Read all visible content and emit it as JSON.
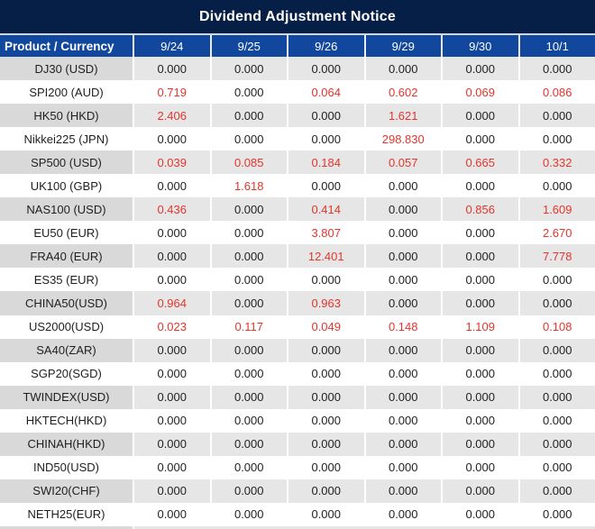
{
  "title": "Dividend Adjustment Notice",
  "colors": {
    "title_bar_navy": "#061f47",
    "header_blue": "#11489d",
    "separator_light_blue": "#cdd9ea",
    "row_label_gray": "#d9d9d9",
    "row_value_gray": "#e7e6e6",
    "value_black": "#1f1f1f",
    "value_red": "#e5342b"
  },
  "table": {
    "product_header": "Product / Currency",
    "dates": [
      "9/24",
      "9/25",
      "9/26",
      "9/29",
      "9/30",
      "10/1"
    ],
    "rows": [
      {
        "product": "DJ30 (USD)",
        "values": [
          "0.000",
          "0.000",
          "0.000",
          "0.000",
          "0.000",
          "0.000"
        ],
        "red": [
          0,
          0,
          0,
          0,
          0,
          0
        ]
      },
      {
        "product": "SPI200 (AUD)",
        "values": [
          "0.719",
          "0.000",
          "0.064",
          "0.602",
          "0.069",
          "0.086"
        ],
        "red": [
          1,
          0,
          1,
          1,
          1,
          1
        ]
      },
      {
        "product": "HK50 (HKD)",
        "values": [
          "2.406",
          "0.000",
          "0.000",
          "1.621",
          "0.000",
          "0.000"
        ],
        "red": [
          1,
          0,
          0,
          1,
          0,
          0
        ]
      },
      {
        "product": "Nikkei225 (JPN)",
        "values": [
          "0.000",
          "0.000",
          "0.000",
          "298.830",
          "0.000",
          "0.000"
        ],
        "red": [
          0,
          0,
          0,
          1,
          0,
          0
        ]
      },
      {
        "product": "SP500 (USD)",
        "values": [
          "0.039",
          "0.085",
          "0.184",
          "0.057",
          "0.665",
          "0.332"
        ],
        "red": [
          1,
          1,
          1,
          1,
          1,
          1
        ]
      },
      {
        "product": "UK100 (GBP)",
        "values": [
          "0.000",
          "1.618",
          "0.000",
          "0.000",
          "0.000",
          "0.000"
        ],
        "red": [
          0,
          1,
          0,
          0,
          0,
          0
        ]
      },
      {
        "product": "NAS100 (USD)",
        "values": [
          "0.436",
          "0.000",
          "0.414",
          "0.000",
          "0.856",
          "1.609"
        ],
        "red": [
          1,
          0,
          1,
          0,
          1,
          1
        ]
      },
      {
        "product": "EU50 (EUR)",
        "values": [
          "0.000",
          "0.000",
          "3.807",
          "0.000",
          "0.000",
          "2.670"
        ],
        "red": [
          0,
          0,
          1,
          0,
          0,
          1
        ]
      },
      {
        "product": "FRA40 (EUR)",
        "values": [
          "0.000",
          "0.000",
          "12.401",
          "0.000",
          "0.000",
          "7.778"
        ],
        "red": [
          0,
          0,
          1,
          0,
          0,
          1
        ]
      },
      {
        "product": "ES35 (EUR)",
        "values": [
          "0.000",
          "0.000",
          "0.000",
          "0.000",
          "0.000",
          "0.000"
        ],
        "red": [
          0,
          0,
          0,
          0,
          0,
          0
        ]
      },
      {
        "product": "CHINA50(USD)",
        "values": [
          "0.964",
          "0.000",
          "0.963",
          "0.000",
          "0.000",
          "0.000"
        ],
        "red": [
          1,
          0,
          1,
          0,
          0,
          0
        ]
      },
      {
        "product": "US2000(USD)",
        "values": [
          "0.023",
          "0.117",
          "0.049",
          "0.148",
          "1.109",
          "0.108"
        ],
        "red": [
          1,
          1,
          1,
          1,
          1,
          1
        ]
      },
      {
        "product": "SA40(ZAR)",
        "values": [
          "0.000",
          "0.000",
          "0.000",
          "0.000",
          "0.000",
          "0.000"
        ],
        "red": [
          0,
          0,
          0,
          0,
          0,
          0
        ]
      },
      {
        "product": "SGP20(SGD)",
        "values": [
          "0.000",
          "0.000",
          "0.000",
          "0.000",
          "0.000",
          "0.000"
        ],
        "red": [
          0,
          0,
          0,
          0,
          0,
          0
        ]
      },
      {
        "product": "TWINDEX(USD)",
        "values": [
          "0.000",
          "0.000",
          "0.000",
          "0.000",
          "0.000",
          "0.000"
        ],
        "red": [
          0,
          0,
          0,
          0,
          0,
          0
        ]
      },
      {
        "product": "HKTECH(HKD)",
        "values": [
          "0.000",
          "0.000",
          "0.000",
          "0.000",
          "0.000",
          "0.000"
        ],
        "red": [
          0,
          0,
          0,
          0,
          0,
          0
        ]
      },
      {
        "product": "CHINAH(HKD)",
        "values": [
          "0.000",
          "0.000",
          "0.000",
          "0.000",
          "0.000",
          "0.000"
        ],
        "red": [
          0,
          0,
          0,
          0,
          0,
          0
        ]
      },
      {
        "product": "IND50(USD)",
        "values": [
          "0.000",
          "0.000",
          "0.000",
          "0.000",
          "0.000",
          "0.000"
        ],
        "red": [
          0,
          0,
          0,
          0,
          0,
          0
        ]
      },
      {
        "product": "SWI20(CHF)",
        "values": [
          "0.000",
          "0.000",
          "0.000",
          "0.000",
          "0.000",
          "0.000"
        ],
        "red": [
          0,
          0,
          0,
          0,
          0,
          0
        ]
      },
      {
        "product": "NETH25(EUR)",
        "values": [
          "0.000",
          "0.000",
          "0.000",
          "0.000",
          "0.000",
          "0.000"
        ],
        "red": [
          0,
          0,
          0,
          0,
          0,
          0
        ]
      }
    ]
  }
}
